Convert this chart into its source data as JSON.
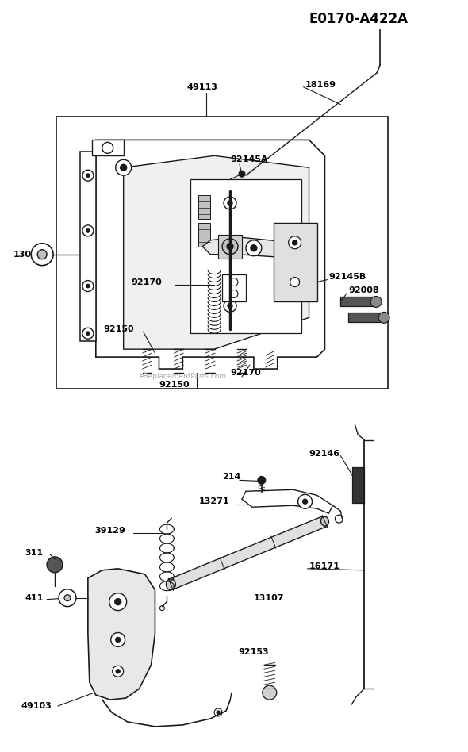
{
  "title": "E0170-A422A",
  "bg_color": "#ffffff",
  "line_color": "#1a1a1a",
  "text_color": "#000000",
  "watermark": "eReplacementParts.com",
  "fig_w": 5.9,
  "fig_h": 9.48,
  "dpi": 100
}
